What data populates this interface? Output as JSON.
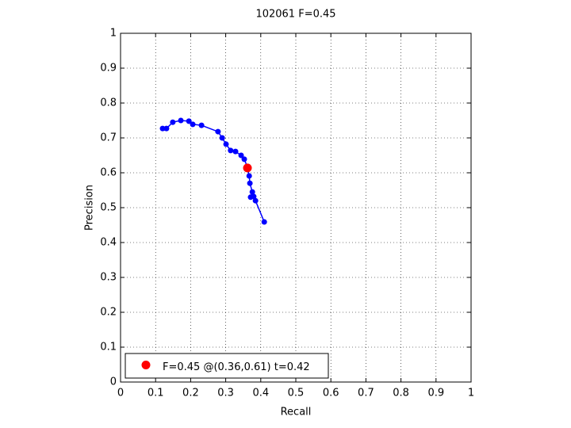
{
  "chart_data": {
    "type": "line",
    "title": "102061 F=0.45",
    "x_label": "Recall",
    "y_label": "Precision",
    "xlim": [
      0,
      1
    ],
    "ylim": [
      0,
      1
    ],
    "xticks": [
      0,
      0.1,
      0.2,
      0.3,
      0.4,
      0.5,
      0.6,
      0.7,
      0.8,
      0.9,
      1
    ],
    "yticks": [
      0,
      0.1,
      0.2,
      0.3,
      0.4,
      0.5,
      0.6,
      0.7,
      0.8,
      0.9,
      1
    ],
    "grid": true,
    "legend": "lower left",
    "series": [
      {
        "color": "#0000ff",
        "x": [
          0.12,
          0.131,
          0.149,
          0.172,
          0.195,
          0.206,
          0.231,
          0.278,
          0.29,
          0.301,
          0.314,
          0.328,
          0.344,
          0.353,
          0.362,
          0.367,
          0.369,
          0.376,
          0.371,
          0.38,
          0.385,
          0.41
        ],
        "values": [
          0.727,
          0.727,
          0.745,
          0.75,
          0.748,
          0.739,
          0.736,
          0.718,
          0.7,
          0.682,
          0.664,
          0.661,
          0.65,
          0.639,
          0.616,
          0.591,
          0.57,
          0.545,
          0.53,
          0.532,
          0.52,
          0.459
        ]
      },
      {
        "name": "F=0.45 @(0.36,0.61) t=0.42",
        "color": "#ff0000",
        "x": [
          0.362
        ],
        "values": [
          0.614
        ]
      }
    ]
  }
}
